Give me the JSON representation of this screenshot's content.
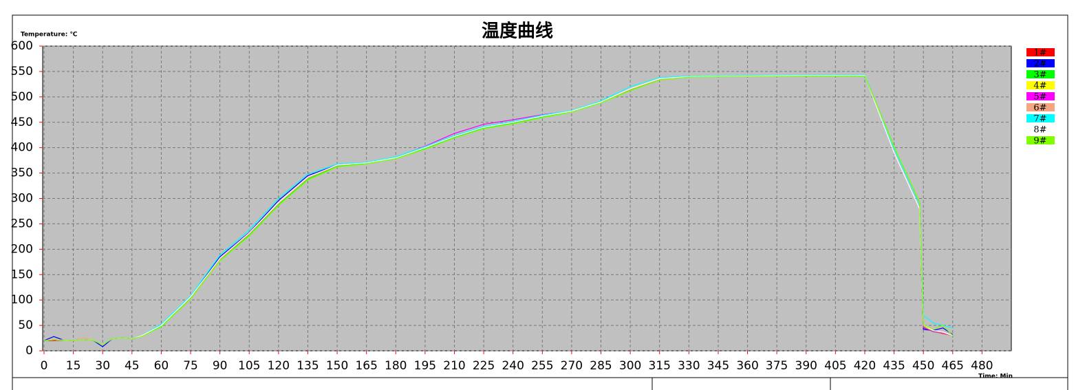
{
  "chart_data": {
    "type": "line",
    "title": "温度曲线",
    "y_label": "Temperature: ℃",
    "x_label": "Time: Min",
    "x": [
      0,
      5,
      10,
      15,
      20,
      25,
      30,
      35,
      40,
      45,
      50,
      60,
      75,
      90,
      105,
      120,
      135,
      150,
      165,
      180,
      195,
      210,
      225,
      240,
      255,
      270,
      285,
      300,
      315,
      330,
      360,
      390,
      420,
      435,
      448,
      450,
      455,
      460,
      465
    ],
    "series": [
      {
        "name": "1#",
        "color": "#ff0000",
        "values": [
          20,
          20,
          21,
          20,
          22,
          21,
          12,
          24,
          25,
          24,
          30,
          50,
          105,
          180,
          230,
          290,
          340,
          365,
          370,
          380,
          400,
          422,
          440,
          450,
          462,
          472,
          490,
          515,
          535,
          540,
          541,
          542,
          542,
          400,
          290,
          45,
          38,
          34,
          30
        ]
      },
      {
        "name": "2#",
        "color": "#0000ff",
        "values": [
          20,
          28,
          21,
          20,
          22,
          21,
          8,
          24,
          25,
          24,
          30,
          51,
          107,
          185,
          233,
          296,
          345,
          366,
          370,
          380,
          400,
          422,
          440,
          450,
          462,
          472,
          490,
          515,
          535,
          540,
          541,
          542,
          542,
          400,
          292,
          42,
          40,
          45,
          32
        ]
      },
      {
        "name": "3#",
        "color": "#00ff00",
        "values": [
          20,
          22,
          21,
          20,
          22,
          21,
          12,
          24,
          25,
          24,
          29,
          48,
          103,
          178,
          228,
          288,
          338,
          363,
          369,
          379,
          398,
          420,
          438,
          448,
          460,
          471,
          489,
          514,
          534,
          540,
          541,
          542,
          542,
          402,
          292,
          48,
          37,
          35,
          30
        ]
      },
      {
        "name": "4#",
        "color": "#ffff00",
        "values": [
          20,
          22,
          21,
          20,
          22,
          21,
          12,
          24,
          25,
          24,
          30,
          50,
          105,
          180,
          230,
          290,
          340,
          365,
          370,
          380,
          400,
          422,
          440,
          450,
          462,
          472,
          490,
          515,
          535,
          540,
          541,
          542,
          542,
          400,
          290,
          50,
          38,
          35,
          30
        ]
      },
      {
        "name": "5#",
        "color": "#ff00ff",
        "values": [
          20,
          22,
          21,
          20,
          22,
          21,
          12,
          24,
          25,
          24,
          30,
          50,
          105,
          181,
          231,
          291,
          341,
          366,
          370,
          381,
          403,
          428,
          446,
          455,
          465,
          472,
          490,
          516,
          535,
          540,
          541,
          542,
          542,
          400,
          290,
          46,
          38,
          35,
          30
        ]
      },
      {
        "name": "6#",
        "color": "#f4a582",
        "values": [
          20,
          22,
          21,
          20,
          26,
          21,
          12,
          24,
          25,
          24,
          30,
          50,
          105,
          180,
          230,
          290,
          340,
          365,
          370,
          380,
          400,
          422,
          440,
          450,
          462,
          472,
          490,
          515,
          535,
          540,
          541,
          542,
          542,
          400,
          290,
          50,
          40,
          36,
          30
        ]
      },
      {
        "name": "7#",
        "color": "#00ffff",
        "values": [
          20,
          22,
          21,
          20,
          22,
          21,
          12,
          24,
          25,
          24,
          30,
          52,
          108,
          188,
          238,
          300,
          348,
          368,
          371,
          382,
          402,
          424,
          442,
          452,
          464,
          473,
          492,
          520,
          538,
          541,
          542,
          543,
          543,
          398,
          288,
          70,
          55,
          50,
          45
        ]
      },
      {
        "name": "8#",
        "color": "#ffffff",
        "values": [
          20,
          22,
          21,
          20,
          22,
          21,
          12,
          24,
          25,
          24,
          30,
          50,
          106,
          182,
          232,
          292,
          342,
          366,
          370,
          380,
          400,
          422,
          440,
          450,
          462,
          472,
          490,
          516,
          536,
          540,
          541,
          542,
          542,
          390,
          280,
          52,
          40,
          37,
          30
        ]
      },
      {
        "name": "9#",
        "color": "#80ff00",
        "values": [
          20,
          22,
          21,
          20,
          22,
          21,
          12,
          24,
          25,
          24,
          28,
          47,
          102,
          177,
          226,
          286,
          336,
          362,
          368,
          378,
          397,
          419,
          437,
          447,
          459,
          470,
          488,
          512,
          533,
          539,
          540,
          541,
          541,
          402,
          294,
          52,
          42,
          50,
          30
        ]
      }
    ],
    "xlim": [
      0,
      495
    ],
    "ylim": [
      0,
      600
    ],
    "xticks": [
      0,
      15,
      30,
      45,
      60,
      75,
      90,
      105,
      120,
      135,
      150,
      165,
      180,
      195,
      210,
      225,
      240,
      255,
      270,
      285,
      300,
      315,
      330,
      345,
      360,
      375,
      390,
      405,
      420,
      435,
      450,
      465,
      480
    ],
    "yticks": [
      0,
      50,
      100,
      150,
      200,
      250,
      300,
      350,
      400,
      450,
      500,
      550,
      600
    ],
    "grid": true
  }
}
